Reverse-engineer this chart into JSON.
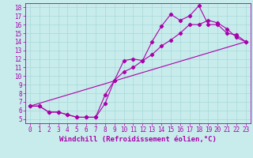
{
  "xlabel": "Windchill (Refroidissement éolien,°C)",
  "bg_color": "#c8ecec",
  "grid_color": "#a8d8d8",
  "line_color": "#aa00aa",
  "xlim": [
    -0.5,
    23.5
  ],
  "ylim": [
    4.5,
    18.5
  ],
  "xticks": [
    0,
    1,
    2,
    3,
    4,
    5,
    6,
    7,
    8,
    9,
    10,
    11,
    12,
    13,
    14,
    15,
    16,
    17,
    18,
    19,
    20,
    21,
    22,
    23
  ],
  "yticks": [
    5,
    6,
    7,
    8,
    9,
    10,
    11,
    12,
    13,
    14,
    15,
    16,
    17,
    18
  ],
  "curve1_x": [
    0,
    1,
    2,
    3,
    4,
    5,
    6,
    7,
    8,
    9,
    10,
    11,
    12,
    13,
    14,
    15,
    16,
    17,
    18,
    19,
    20,
    21,
    22,
    23
  ],
  "curve1_y": [
    6.5,
    6.5,
    5.8,
    5.8,
    5.5,
    5.2,
    5.2,
    5.2,
    6.8,
    9.5,
    11.8,
    12.0,
    11.8,
    14.0,
    15.8,
    17.2,
    16.5,
    17.0,
    18.2,
    16.0,
    16.0,
    15.0,
    14.8,
    14.0
  ],
  "curve2_x": [
    0,
    1,
    2,
    3,
    4,
    5,
    6,
    7,
    8,
    9,
    10,
    11,
    12,
    13,
    14,
    15,
    16,
    17,
    18,
    19,
    20,
    21,
    22,
    23
  ],
  "curve2_y": [
    6.5,
    6.5,
    5.8,
    5.8,
    5.5,
    5.2,
    5.2,
    5.2,
    7.8,
    9.5,
    10.5,
    11.0,
    11.8,
    12.5,
    13.5,
    14.2,
    15.0,
    16.0,
    16.0,
    16.5,
    16.2,
    15.5,
    14.5,
    14.0
  ],
  "line3_x": [
    0,
    23
  ],
  "line3_y": [
    6.5,
    14.0
  ],
  "marker": "D",
  "marker_size": 2.2,
  "tick_fontsize": 5.5,
  "label_fontsize": 6.5,
  "linewidth": 0.8
}
